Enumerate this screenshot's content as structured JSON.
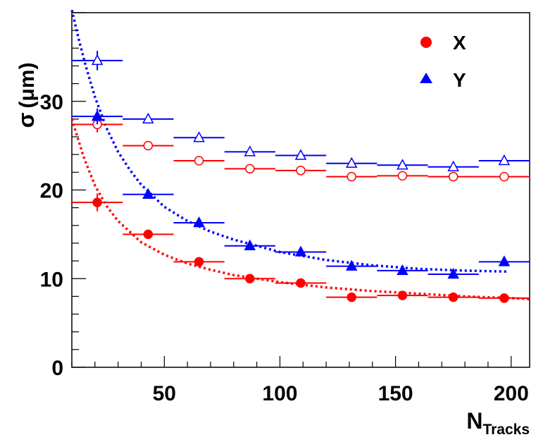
{
  "chart_data": {
    "type": "scatter",
    "title": "",
    "xlabel": {
      "main": "N",
      "sub": "Tracks"
    },
    "ylabel": {
      "main": "σ",
      "unit": "(μm)"
    },
    "xlim": [
      10,
      208
    ],
    "ylim": [
      0,
      40
    ],
    "x_ticks": [
      50,
      100,
      150,
      200
    ],
    "y_ticks": [
      0,
      10,
      20,
      30
    ],
    "x_tick_labels": [
      "50",
      "100",
      "150",
      "200"
    ],
    "y_tick_labels": [
      "0",
      "10",
      "20",
      "30"
    ],
    "legend": {
      "placement": "top-right",
      "entries": [
        {
          "label": "X",
          "marker": "circle",
          "color": "#ff0000"
        },
        {
          "label": "Y",
          "marker": "triangle",
          "color": "#0000ff"
        }
      ]
    },
    "x_bins": [
      {
        "x": 21,
        "lo": 10,
        "hi": 32
      },
      {
        "x": 43,
        "lo": 32,
        "hi": 54
      },
      {
        "x": 65,
        "lo": 54,
        "hi": 76
      },
      {
        "x": 87,
        "lo": 76,
        "hi": 98
      },
      {
        "x": 109,
        "lo": 98,
        "hi": 120
      },
      {
        "x": 131,
        "lo": 120,
        "hi": 142
      },
      {
        "x": 153,
        "lo": 142,
        "hi": 164
      },
      {
        "x": 175,
        "lo": 164,
        "hi": 186
      },
      {
        "x": 197,
        "lo": 186,
        "hi": 208
      }
    ],
    "series": [
      {
        "name": "X open",
        "axis": "X",
        "marker": "circle",
        "filled": false,
        "color": "#ff0000",
        "values": [
          27.4,
          25.0,
          23.3,
          22.4,
          22.2,
          21.5,
          21.6,
          21.5,
          21.5
        ],
        "yerr": [
          0.9,
          0.5,
          0.3,
          0.3,
          0.3,
          0.2,
          0.2,
          0.2,
          0.2
        ]
      },
      {
        "name": "X filled",
        "axis": "X",
        "marker": "circle",
        "filled": true,
        "color": "#ff0000",
        "values": [
          18.6,
          15.0,
          11.9,
          10.0,
          9.5,
          7.9,
          8.1,
          7.9,
          7.8
        ],
        "yerr": [
          1.0,
          0.4,
          0.3,
          0.2,
          0.2,
          0.2,
          0.2,
          0.2,
          0.2
        ]
      },
      {
        "name": "Y open",
        "axis": "Y",
        "marker": "triangle",
        "filled": false,
        "color": "#0000ff",
        "values": [
          34.6,
          28.0,
          25.9,
          24.3,
          23.9,
          23.0,
          22.8,
          22.6,
          23.3
        ],
        "yerr": [
          1.1,
          0.5,
          0.3,
          0.3,
          0.3,
          0.2,
          0.2,
          0.2,
          0.2
        ]
      },
      {
        "name": "Y filled",
        "axis": "Y",
        "marker": "triangle",
        "filled": true,
        "color": "#0000ff",
        "values": [
          28.3,
          19.5,
          16.3,
          13.7,
          13.0,
          11.4,
          10.9,
          10.5,
          11.9
        ],
        "yerr": [
          0.9,
          0.5,
          0.3,
          0.2,
          0.2,
          0.2,
          0.2,
          0.2,
          0.2
        ]
      }
    ],
    "fits": [
      {
        "name": "X fit",
        "color": "#ff0000",
        "style": "dotted",
        "x": [
          10,
          15,
          20,
          25,
          30,
          40,
          50,
          60,
          70,
          80,
          100,
          120,
          140,
          160,
          180,
          200,
          208
        ],
        "y": [
          28.0,
          23.8,
          20.5,
          18.2,
          16.5,
          14.1,
          12.7,
          11.7,
          11.0,
          10.4,
          9.6,
          9.0,
          8.6,
          8.3,
          8.0,
          7.8,
          7.7
        ]
      },
      {
        "name": "Y fit",
        "color": "#0000ff",
        "style": "dotted",
        "x": [
          10,
          13,
          16,
          20,
          25,
          30,
          35,
          40,
          50,
          60,
          70,
          80,
          100,
          120,
          140,
          160,
          180,
          198
        ],
        "y": [
          40.3,
          37.0,
          34.0,
          30.5,
          27.0,
          24.3,
          22.3,
          20.6,
          18.1,
          16.5,
          15.3,
          14.4,
          13.0,
          12.1,
          11.5,
          11.1,
          10.9,
          10.8
        ]
      }
    ]
  }
}
